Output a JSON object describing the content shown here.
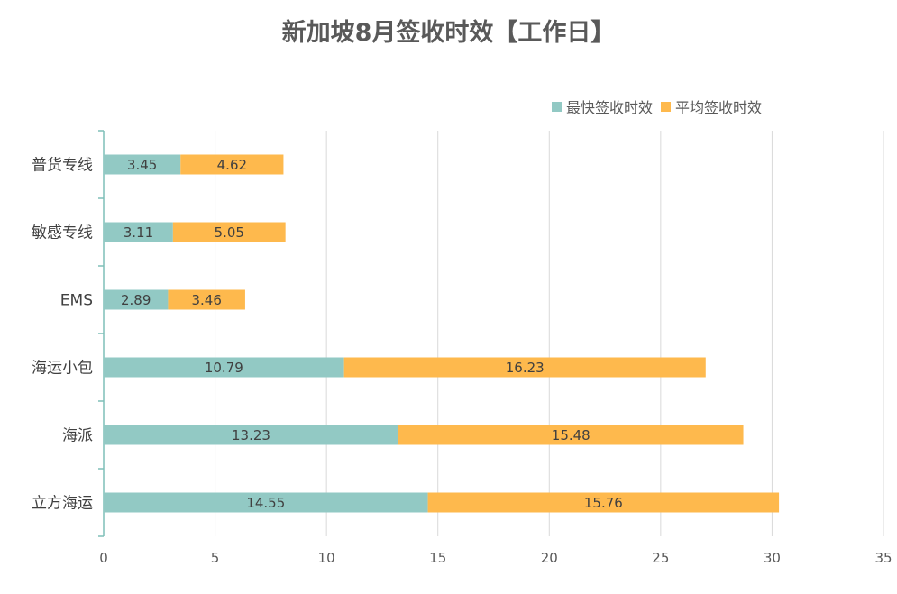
{
  "chart_data": {
    "type": "bar",
    "orientation": "horizontal",
    "stacked": true,
    "title": "新加坡8月签收时效【工作日】",
    "categories": [
      "普货专线",
      "敏感专线",
      "EMS",
      "海运小包",
      "海派",
      "立方海运"
    ],
    "series": [
      {
        "name": "最快签收时效",
        "color": "#92C9C4",
        "values": [
          3.45,
          3.11,
          2.89,
          10.79,
          13.23,
          14.55
        ]
      },
      {
        "name": "平均签收时效",
        "color": "#FEB94D",
        "values": [
          4.62,
          5.05,
          3.46,
          16.23,
          15.48,
          15.76
        ]
      }
    ],
    "xlim": [
      0,
      35
    ],
    "xticks": [
      0,
      5,
      10,
      15,
      20,
      25,
      30,
      35
    ],
    "grid": true,
    "legend_position": "top-right",
    "data_labels": true
  }
}
